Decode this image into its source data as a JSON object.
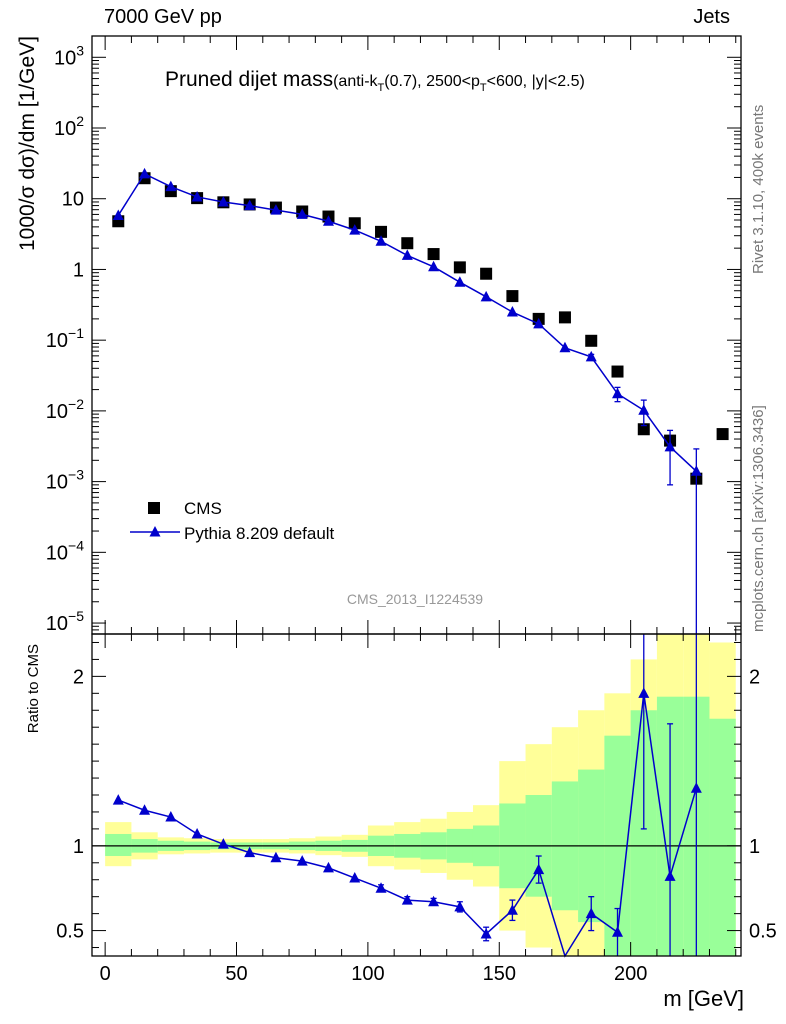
{
  "header": {
    "left": "7000 GeV pp",
    "right": "Jets"
  },
  "side": {
    "top": "Rivet 3.1.10,  400k events",
    "bottom": "mcplots.cern.ch [arXiv:1306.3436]"
  },
  "chart_data": [
    {
      "type": "scatter",
      "title_main": "Pruned dijet mass",
      "title_sub_parts": [
        "(anti-k",
        "T",
        "(0.7), 2500<p",
        "T",
        "<600, |y|<2.5)"
      ],
      "ylabel": "1000/σ dσ)/dm [1/GeV]",
      "xlim": [
        -5,
        242
      ],
      "ylim": [
        7e-06,
        2000
      ],
      "log_y": true,
      "y_ticks": [
        {
          "v": 1000,
          "base": "10",
          "exp": "3"
        },
        {
          "v": 100,
          "base": "10",
          "exp": "2"
        },
        {
          "v": 10,
          "base": "10",
          "exp": ""
        },
        {
          "v": 1,
          "base": "1",
          "exp": ""
        },
        {
          "v": 0.1,
          "base": "10",
          "exp": "−1"
        },
        {
          "v": 0.01,
          "base": "10",
          "exp": "−2"
        },
        {
          "v": 0.001,
          "base": "10",
          "exp": "−3"
        },
        {
          "v": 0.0001,
          "base": "10",
          "exp": "−4"
        },
        {
          "v": 1e-05,
          "base": "10",
          "exp": "−5"
        }
      ],
      "watermark": "CMS_2013_I1224539",
      "legend": {
        "placement": "bottom-left",
        "entries": [
          "CMS",
          "Pythia 8.209 default"
        ]
      },
      "series": [
        {
          "name": "CMS",
          "x": [
            5,
            15,
            25,
            35,
            45,
            55,
            65,
            75,
            85,
            95,
            105,
            115,
            125,
            135,
            145,
            155,
            165,
            175,
            185,
            195,
            205,
            215,
            225,
            235
          ],
          "y": [
            4.8,
            19.5,
            12.8,
            10.2,
            8.9,
            8.3,
            7.5,
            6.6,
            5.6,
            4.5,
            3.4,
            2.35,
            1.65,
            1.07,
            0.87,
            0.42,
            0.2,
            0.21,
            0.098,
            0.036,
            0.0055,
            0.0038,
            0.0011,
            0.0047
          ]
        },
        {
          "name": "Pythia 8.209 default",
          "x": [
            5,
            15,
            25,
            35,
            45,
            55,
            65,
            75,
            85,
            95,
            105,
            115,
            125,
            135,
            145,
            155,
            165,
            175,
            185,
            195,
            205,
            215,
            225
          ],
          "y": [
            5.8,
            22.5,
            14.8,
            10.6,
            9.0,
            8.0,
            6.9,
            6.0,
            4.8,
            3.6,
            2.5,
            1.58,
            1.09,
            0.66,
            0.41,
            0.25,
            0.17,
            0.078,
            0.058,
            0.0175,
            0.0102,
            0.0031,
            0.0014
          ],
          "yerr_lo": [
            0,
            0,
            0,
            0,
            0,
            0,
            0,
            0,
            0,
            0,
            0,
            0,
            0,
            0,
            0,
            0,
            0,
            0,
            0.005,
            0.004,
            0.004,
            0.0022,
            0.0014
          ],
          "yerr_hi": [
            0,
            0,
            0,
            0,
            0,
            0,
            0,
            0,
            0,
            0,
            0,
            0,
            0,
            0,
            0,
            0,
            0,
            0,
            0.005,
            0.004,
            0.004,
            0.0022,
            0.0015
          ]
        }
      ]
    },
    {
      "type": "scatter",
      "xlabel": "m [GeV]",
      "ylabel": "Ratio to CMS",
      "xlim": [
        -5,
        242
      ],
      "ylim": [
        0.35,
        2.25
      ],
      "x_ticks": [
        0,
        50,
        100,
        150,
        200
      ],
      "y_ticks": [
        0.5,
        1,
        2
      ],
      "bands": {
        "x_edges": [
          0,
          10,
          20,
          30,
          40,
          50,
          60,
          70,
          80,
          90,
          100,
          110,
          120,
          130,
          140,
          150,
          160,
          170,
          180,
          190,
          200,
          210,
          220,
          230,
          240
        ],
        "green": [
          [
            0.94,
            1.07
          ],
          [
            0.96,
            1.04
          ],
          [
            0.97,
            1.03
          ],
          [
            0.975,
            1.025
          ],
          [
            0.98,
            1.02
          ],
          [
            0.98,
            1.02
          ],
          [
            0.98,
            1.02
          ],
          [
            0.975,
            1.025
          ],
          [
            0.97,
            1.03
          ],
          [
            0.965,
            1.035
          ],
          [
            0.94,
            1.06
          ],
          [
            0.93,
            1.07
          ],
          [
            0.92,
            1.08
          ],
          [
            0.9,
            1.1
          ],
          [
            0.88,
            1.12
          ],
          [
            0.75,
            1.25
          ],
          [
            0.7,
            1.3
          ],
          [
            0.62,
            1.38
          ],
          [
            0.55,
            1.45
          ],
          [
            0.35,
            1.65
          ],
          [
            0.35,
            1.8
          ],
          [
            0.35,
            1.88
          ],
          [
            0.35,
            1.88
          ],
          [
            0.35,
            1.75
          ]
        ],
        "yellow": [
          [
            0.88,
            1.14
          ],
          [
            0.92,
            1.08
          ],
          [
            0.95,
            1.05
          ],
          [
            0.955,
            1.045
          ],
          [
            0.96,
            1.04
          ],
          [
            0.96,
            1.04
          ],
          [
            0.96,
            1.04
          ],
          [
            0.955,
            1.045
          ],
          [
            0.945,
            1.055
          ],
          [
            0.935,
            1.065
          ],
          [
            0.88,
            1.12
          ],
          [
            0.86,
            1.14
          ],
          [
            0.84,
            1.16
          ],
          [
            0.8,
            1.2
          ],
          [
            0.76,
            1.24
          ],
          [
            0.5,
            1.5
          ],
          [
            0.4,
            1.6
          ],
          [
            0.35,
            1.7
          ],
          [
            0.35,
            1.8
          ],
          [
            0.35,
            1.9
          ],
          [
            0.35,
            2.1
          ],
          [
            0.35,
            2.25
          ],
          [
            0.35,
            2.25
          ],
          [
            0.35,
            2.2
          ]
        ]
      },
      "series": [
        {
          "name": "Pythia 8.209 default",
          "x": [
            5,
            15,
            25,
            35,
            45,
            55,
            65,
            75,
            85,
            95,
            105,
            115,
            125,
            135,
            145,
            155,
            165,
            175,
            185,
            195,
            205,
            215,
            225
          ],
          "y": [
            1.27,
            1.21,
            1.17,
            1.07,
            1.01,
            0.96,
            0.93,
            0.91,
            0.87,
            0.81,
            0.75,
            0.68,
            0.67,
            0.64,
            0.48,
            0.62,
            0.86,
            0.35,
            0.6,
            0.49,
            1.9,
            0.82,
            1.34
          ],
          "yerr_lo": [
            0,
            0,
            0,
            0,
            0,
            0,
            0,
            0,
            0,
            0,
            0.02,
            0.02,
            0.02,
            0.03,
            0.04,
            0.06,
            0.08,
            0,
            0.1,
            0.14,
            0.8,
            0.47,
            1.0
          ],
          "yerr_hi": [
            0,
            0,
            0,
            0,
            0,
            0,
            0,
            0,
            0,
            0,
            0.02,
            0.02,
            0.02,
            0.03,
            0.04,
            0.06,
            0.08,
            0,
            0.1,
            0.14,
            0.8,
            0.9,
            1.0
          ]
        }
      ]
    }
  ]
}
